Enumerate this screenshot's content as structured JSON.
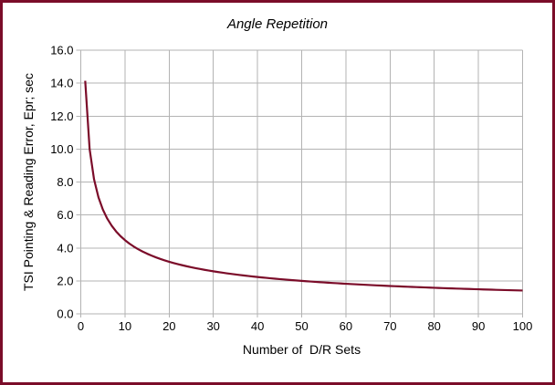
{
  "colors": {
    "frame_border": "#7b0c29",
    "curve": "#7b0c29",
    "grid": "#b3b3b3",
    "text": "#000000",
    "background": "#ffffff"
  },
  "chart_data": {
    "type": "line",
    "title": "Angle Repetition",
    "xlabel": "Number of  D/R Sets",
    "ylabel": "TSI Pointing & Reading Error, Epr; sec",
    "xlim": [
      0,
      100
    ],
    "ylim": [
      0,
      16
    ],
    "grid": true,
    "legend_position": "none",
    "x_ticks": [
      0,
      10,
      20,
      30,
      40,
      50,
      60,
      70,
      80,
      90,
      100
    ],
    "x_tick_labels": [
      "0",
      "10",
      "20",
      "30",
      "40",
      "50",
      "60",
      "70",
      "80",
      "90",
      "100"
    ],
    "y_ticks": [
      0,
      2,
      4,
      6,
      8,
      10,
      12,
      14,
      16
    ],
    "y_tick_labels": [
      "0.0",
      "2.0",
      "4.0",
      "6.0",
      "8.0",
      "10.0",
      "12.0",
      "14.0",
      "16.0"
    ],
    "series": [
      {
        "name": "Epr",
        "color": "#7b0c29",
        "x": [
          1,
          2,
          3,
          4,
          5,
          6,
          7,
          8,
          9,
          10,
          11,
          12,
          13,
          14,
          15,
          16,
          17,
          18,
          19,
          20,
          21,
          22,
          23,
          24,
          25,
          26,
          27,
          28,
          29,
          30,
          31,
          32,
          33,
          34,
          35,
          36,
          37,
          38,
          39,
          40,
          41,
          42,
          43,
          44,
          45,
          46,
          47,
          48,
          49,
          50,
          51,
          52,
          53,
          54,
          55,
          56,
          57,
          58,
          59,
          60,
          61,
          62,
          63,
          64,
          65,
          66,
          67,
          68,
          69,
          70,
          71,
          72,
          73,
          74,
          75,
          76,
          77,
          78,
          79,
          80,
          81,
          82,
          83,
          84,
          85,
          86,
          87,
          88,
          89,
          90,
          91,
          92,
          93,
          94,
          95,
          96,
          97,
          98,
          99,
          100
        ],
        "y": [
          14.14,
          9.999,
          8.164,
          7.07,
          6.324,
          5.773,
          5.344,
          4.999,
          4.713,
          4.471,
          4.263,
          4.082,
          3.922,
          3.779,
          3.651,
          3.535,
          3.429,
          3.333,
          3.244,
          3.162,
          3.086,
          3.015,
          2.948,
          2.886,
          2.828,
          2.773,
          2.721,
          2.672,
          2.626,
          2.582,
          2.54,
          2.5,
          2.461,
          2.425,
          2.39,
          2.357,
          2.325,
          2.294,
          2.264,
          2.236,
          2.208,
          2.182,
          2.156,
          2.132,
          2.108,
          2.085,
          2.062,
          2.041,
          2.02,
          2.0,
          1.98,
          1.961,
          1.942,
          1.924,
          1.907,
          1.889,
          1.873,
          1.857,
          1.841,
          1.825,
          1.81,
          1.796,
          1.781,
          1.768,
          1.754,
          1.741,
          1.727,
          1.715,
          1.702,
          1.69,
          1.678,
          1.666,
          1.655,
          1.644,
          1.633,
          1.622,
          1.611,
          1.601,
          1.591,
          1.581,
          1.571,
          1.561,
          1.552,
          1.543,
          1.534,
          1.525,
          1.516,
          1.507,
          1.499,
          1.49,
          1.482,
          1.474,
          1.466,
          1.458,
          1.451,
          1.443,
          1.436,
          1.428,
          1.421,
          1.414
        ]
      }
    ]
  }
}
